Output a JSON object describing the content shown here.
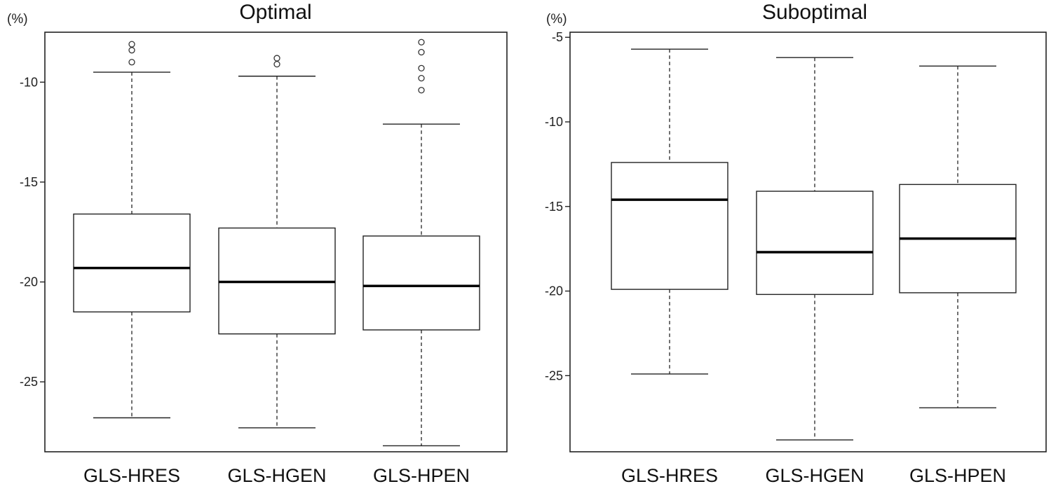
{
  "chart_data": [
    {
      "type": "box",
      "title": "Optimal",
      "ylabel": "(%)",
      "ylim": [
        -28.5,
        -7.5
      ],
      "yticks": [
        -10,
        -15,
        -20,
        -25
      ],
      "ytick_labels": [
        "-10",
        "-15",
        "-20",
        "-25"
      ],
      "categories": [
        "GLS-HRES",
        "GLS-HGEN",
        "GLS-HPEN"
      ],
      "boxes": [
        {
          "whisker_low": -26.8,
          "q1": -21.5,
          "median": -19.3,
          "q3": -16.6,
          "whisker_high": -9.5,
          "outliers": [
            -8.1,
            -8.4,
            -9.0
          ]
        },
        {
          "whisker_low": -27.3,
          "q1": -22.6,
          "median": -20.0,
          "q3": -17.3,
          "whisker_high": -9.7,
          "outliers": [
            -8.8,
            -9.1
          ]
        },
        {
          "whisker_low": -28.2,
          "q1": -22.4,
          "median": -20.2,
          "q3": -17.7,
          "whisker_high": -12.1,
          "outliers": [
            -8.0,
            -8.5,
            -9.3,
            -9.8,
            -10.4
          ]
        }
      ]
    },
    {
      "type": "box",
      "title": "Suboptimal",
      "ylabel": "(%)",
      "ylim": [
        -29.5,
        -4.7
      ],
      "yticks": [
        -5,
        -10,
        -15,
        -20,
        -25
      ],
      "ytick_labels": [
        "-5",
        "-10",
        "-15",
        "-20",
        "-25"
      ],
      "categories": [
        "GLS-HRES",
        "GLS-HGEN",
        "GLS-HPEN"
      ],
      "boxes": [
        {
          "whisker_low": -24.9,
          "q1": -19.9,
          "median": -14.6,
          "q3": -12.4,
          "whisker_high": -5.7,
          "outliers": []
        },
        {
          "whisker_low": -28.8,
          "q1": -20.2,
          "median": -17.7,
          "q3": -14.1,
          "whisker_high": -6.2,
          "outliers": []
        },
        {
          "whisker_low": -26.9,
          "q1": -20.1,
          "median": -16.9,
          "q3": -13.7,
          "whisker_high": -6.7,
          "outliers": []
        }
      ]
    }
  ]
}
